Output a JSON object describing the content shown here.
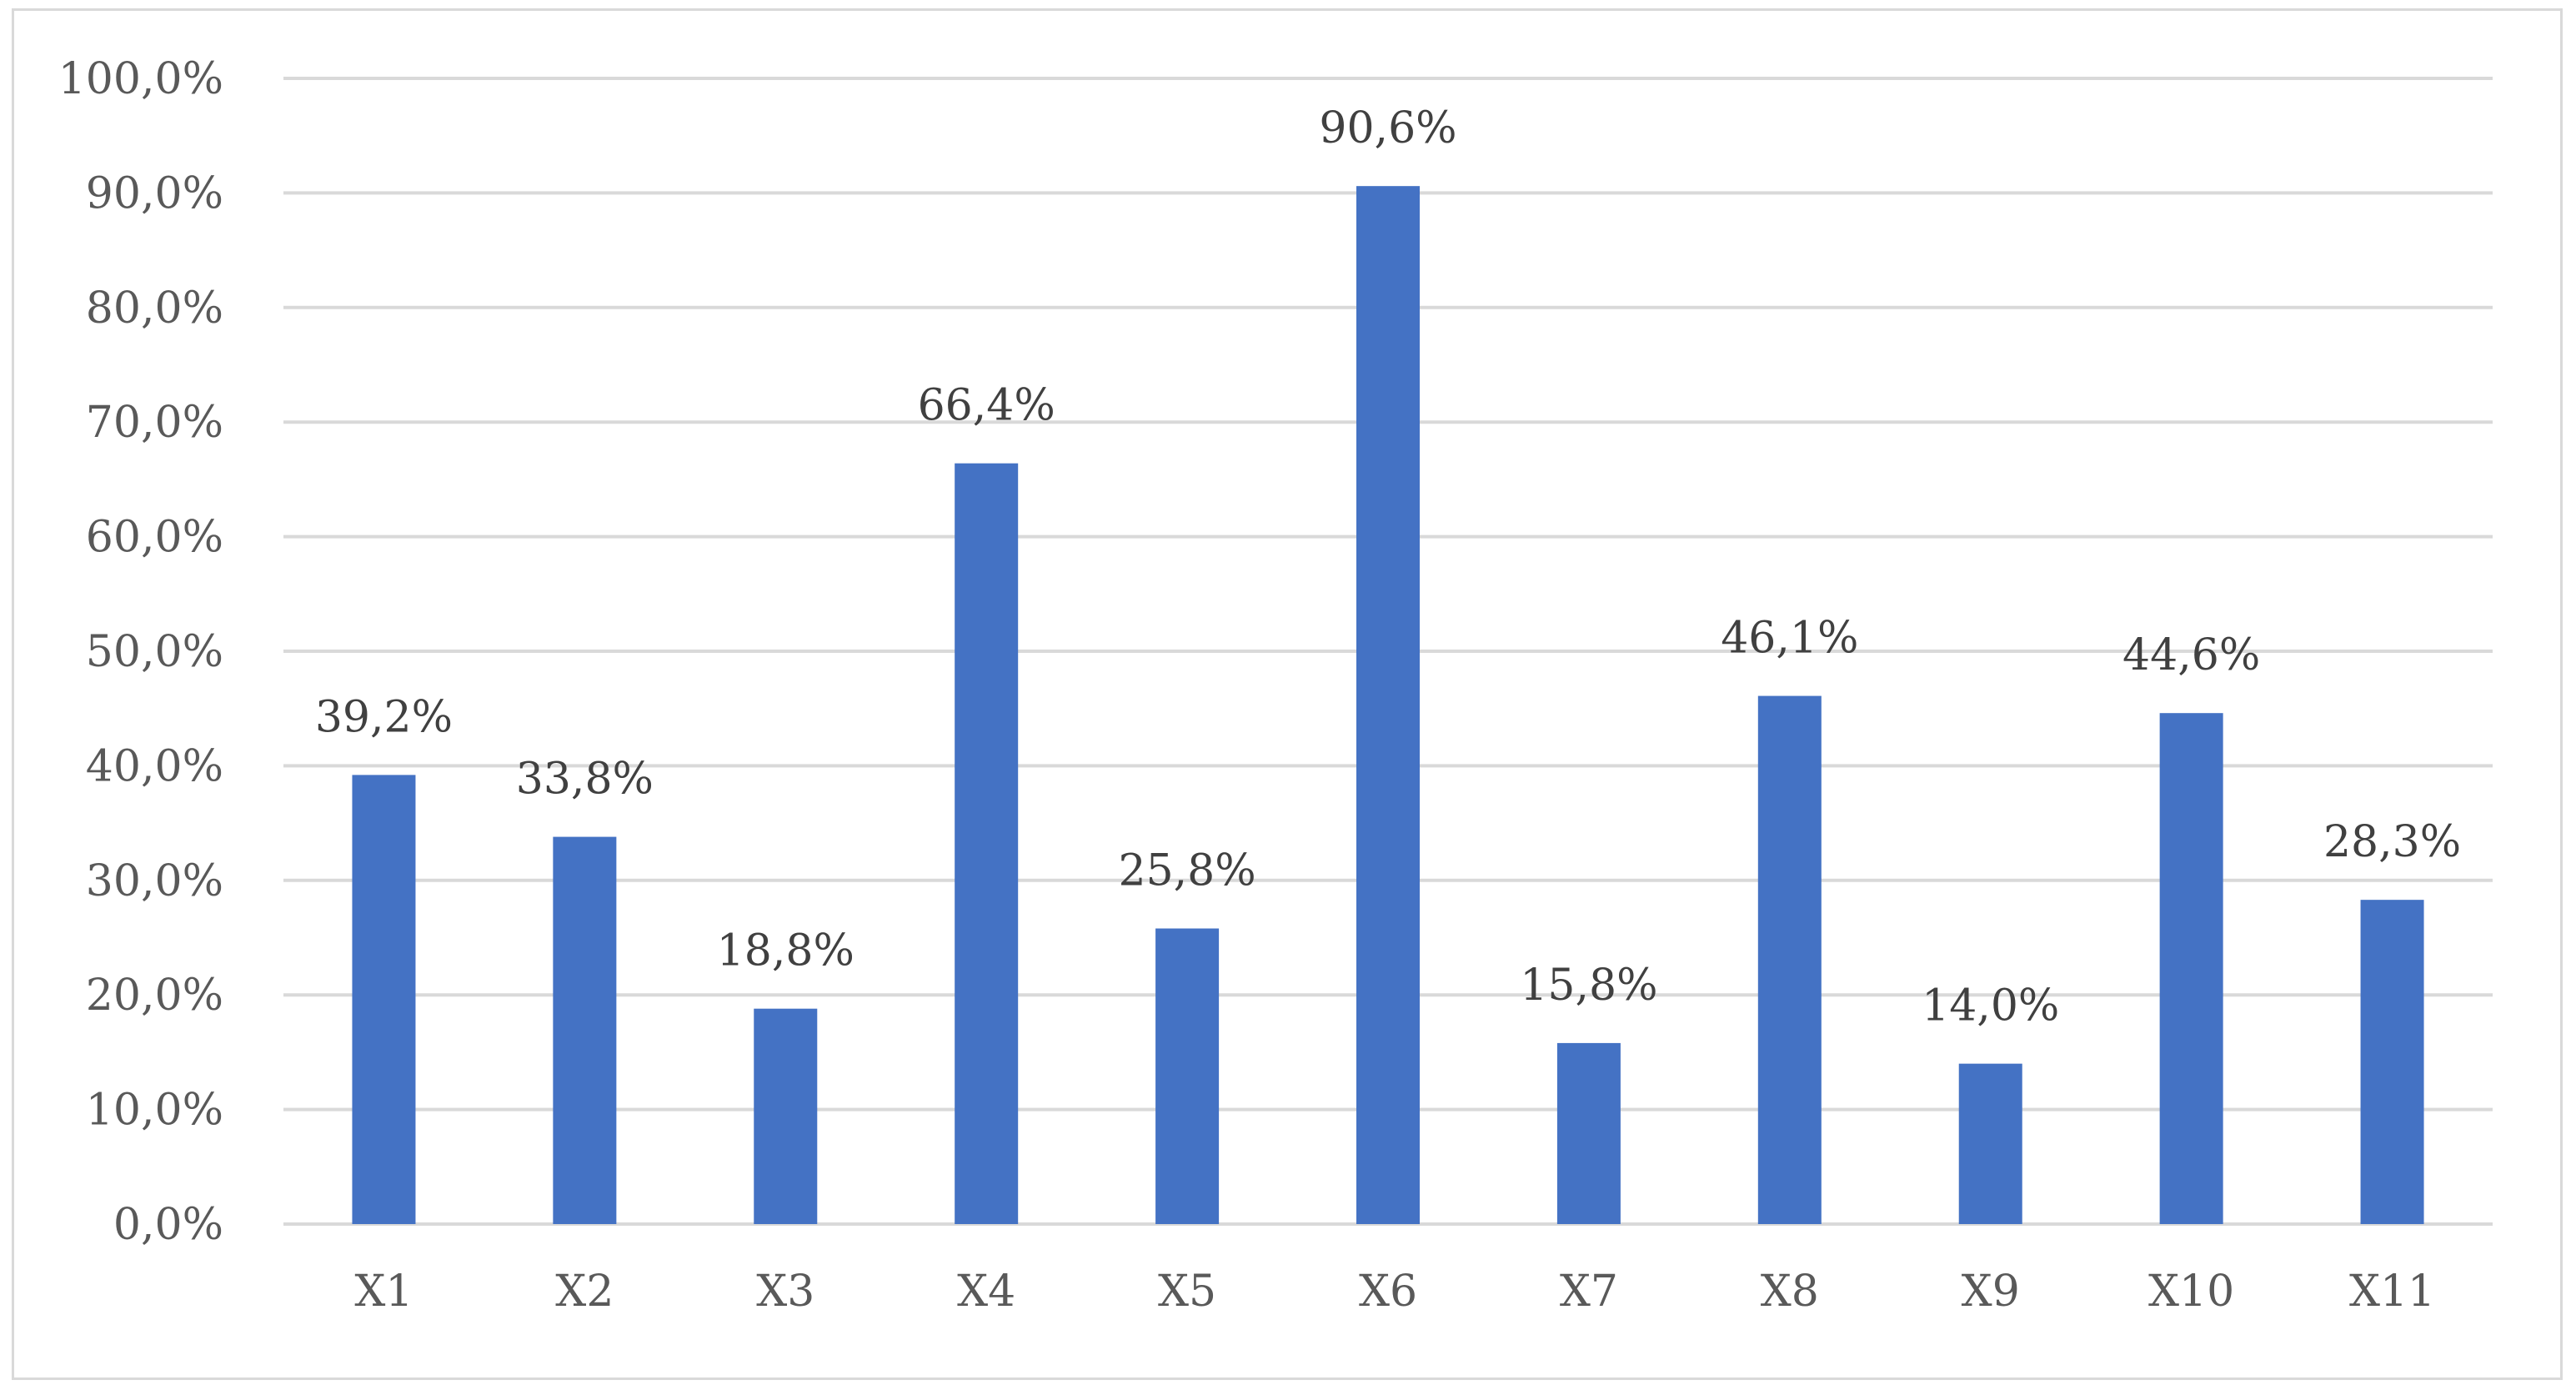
{
  "chart_data": {
    "type": "bar",
    "categories": [
      "X1",
      "X2",
      "X3",
      "X4",
      "X5",
      "X6",
      "X7",
      "X8",
      "X9",
      "X10",
      "X11"
    ],
    "series": [
      {
        "values": [
          39.2,
          33.8,
          18.8,
          66.4,
          25.8,
          90.6,
          15.8,
          46.1,
          14.0,
          44.6,
          28.3
        ],
        "color": "#4472c4"
      }
    ],
    "data_labels": [
      "39,2%",
      "33,8%",
      "18,8%",
      "66,4%",
      "25,8%",
      "90,6%",
      "15,8%",
      "46,1%",
      "14,0%",
      "44,6%",
      "28,3%"
    ],
    "y_ticks": [
      0,
      10,
      20,
      30,
      40,
      50,
      60,
      70,
      80,
      90,
      100
    ],
    "y_tick_labels": [
      "0,0%",
      "10,0%",
      "20,0%",
      "30,0%",
      "40,0%",
      "50,0%",
      "60,0%",
      "70,0%",
      "80,0%",
      "90,0%",
      "100,0%"
    ],
    "ylim": [
      0,
      100
    ],
    "title": "",
    "xlabel": "",
    "ylabel": "",
    "grid": true,
    "gridline_color": "#d9d9d9",
    "text_color": "#595959",
    "legend": "none"
  }
}
